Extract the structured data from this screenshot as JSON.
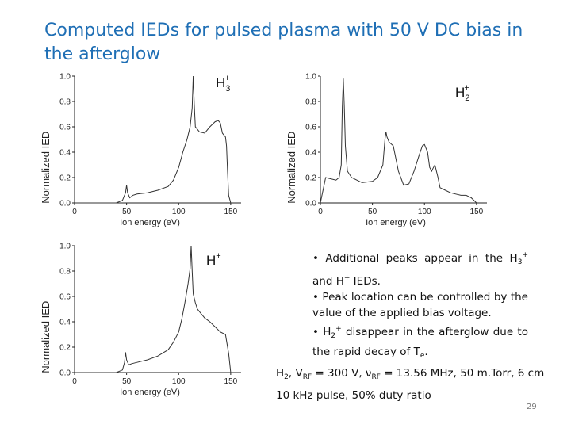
{
  "slide": {
    "title": "Computed IEDs for pulsed plasma with 50 V DC bias in the afterglow",
    "page_number": "29"
  },
  "bullets": [
    {
      "parts": [
        "• Additional peaks appear in the H",
        {
          "sub": "3"
        },
        {
          "sup": "+"
        },
        " and H",
        {
          "sup": "+"
        },
        " IEDs."
      ]
    },
    {
      "parts": [
        "• Peak location can be controlled by the value of the applied bias voltage."
      ]
    },
    {
      "parts": [
        "• H",
        {
          "sub": "2"
        },
        {
          "sup": "+"
        },
        " disappear in the afterglow due to the rapid decay of T",
        {
          "sub": "e"
        },
        "."
      ]
    }
  ],
  "conditions": {
    "parts": [
      "H",
      {
        "sub": "2"
      },
      ", V",
      {
        "sub": "RF"
      },
      " = 300 V, ν",
      {
        "sub": "RF"
      },
      " = 13.56 MHz, 50 m.Torr, 6 cm",
      {
        "br": true
      },
      "10 kHz pulse, 50% duty ratio"
    ]
  },
  "chart_data": [
    {
      "type": "line",
      "species": {
        "base": "H",
        "sub": "3",
        "sup": "+"
      },
      "xlabel": "Ion energy (eV)",
      "ylabel": "Normalized IED",
      "xlim": [
        0,
        160
      ],
      "ylim": [
        0,
        1.0
      ],
      "xticks": [
        0,
        50,
        100,
        150
      ],
      "yticks": [
        0.0,
        0.2,
        0.4,
        0.6,
        0.8,
        1.0
      ],
      "x": [
        0,
        5,
        10,
        20,
        30,
        40,
        46,
        49,
        50,
        51,
        53,
        56,
        60,
        70,
        80,
        90,
        95,
        100,
        104,
        108,
        111,
        113,
        114,
        115,
        116,
        118,
        120,
        125,
        130,
        135,
        138,
        140,
        142,
        145,
        146,
        147,
        148,
        150
      ],
      "y": [
        0,
        0,
        0,
        0,
        0,
        0,
        0.02,
        0.08,
        0.14,
        0.08,
        0.04,
        0.06,
        0.07,
        0.08,
        0.1,
        0.13,
        0.18,
        0.28,
        0.4,
        0.5,
        0.6,
        0.75,
        1.0,
        0.78,
        0.6,
        0.58,
        0.56,
        0.55,
        0.6,
        0.64,
        0.65,
        0.63,
        0.55,
        0.52,
        0.45,
        0.25,
        0.06,
        0
      ]
    },
    {
      "type": "line",
      "species": {
        "base": "H",
        "sub": "2",
        "sup": "+"
      },
      "xlabel": "Ion energy (eV)",
      "ylabel": "Normalized IED",
      "xlim": [
        0,
        160
      ],
      "ylim": [
        0,
        1.0
      ],
      "xticks": [
        0,
        50,
        100,
        150
      ],
      "yticks": [
        0.0,
        0.2,
        0.4,
        0.6,
        0.8,
        1.0
      ],
      "x": [
        0,
        5,
        10,
        15,
        18,
        20,
        21,
        22,
        23,
        24,
        26,
        30,
        40,
        50,
        55,
        60,
        62,
        63,
        64,
        66,
        70,
        75,
        80,
        85,
        90,
        95,
        98,
        100,
        103,
        105,
        107,
        108,
        110,
        113,
        115,
        120,
        125,
        130,
        135,
        140,
        145,
        150
      ],
      "y": [
        0,
        0.2,
        0.19,
        0.18,
        0.2,
        0.3,
        0.75,
        0.98,
        0.75,
        0.45,
        0.25,
        0.2,
        0.16,
        0.17,
        0.2,
        0.3,
        0.5,
        0.56,
        0.52,
        0.48,
        0.45,
        0.25,
        0.14,
        0.15,
        0.25,
        0.38,
        0.45,
        0.46,
        0.4,
        0.28,
        0.25,
        0.27,
        0.3,
        0.2,
        0.12,
        0.1,
        0.08,
        0.07,
        0.06,
        0.06,
        0.04,
        0
      ]
    },
    {
      "type": "line",
      "species": {
        "base": "H",
        "sub": "",
        "sup": "+"
      },
      "xlabel": "Ion energy (eV)",
      "ylabel": "Normalized IED",
      "xlim": [
        0,
        160
      ],
      "ylim": [
        0,
        1.0
      ],
      "xticks": [
        0,
        50,
        100,
        150
      ],
      "yticks": [
        0.0,
        0.2,
        0.4,
        0.6,
        0.8,
        1.0
      ],
      "x": [
        0,
        5,
        10,
        20,
        30,
        40,
        46,
        48,
        49,
        50,
        52,
        55,
        60,
        70,
        80,
        90,
        95,
        100,
        103,
        106,
        109,
        111,
        112,
        113,
        114,
        116,
        118,
        122,
        125,
        130,
        135,
        140,
        145,
        148,
        150
      ],
      "y": [
        0,
        0,
        0,
        0,
        0,
        0,
        0.02,
        0.08,
        0.16,
        0.1,
        0.06,
        0.07,
        0.08,
        0.1,
        0.13,
        0.18,
        0.24,
        0.32,
        0.42,
        0.55,
        0.7,
        0.82,
        1.0,
        0.8,
        0.62,
        0.55,
        0.5,
        0.46,
        0.43,
        0.4,
        0.36,
        0.32,
        0.3,
        0.15,
        0
      ]
    }
  ]
}
